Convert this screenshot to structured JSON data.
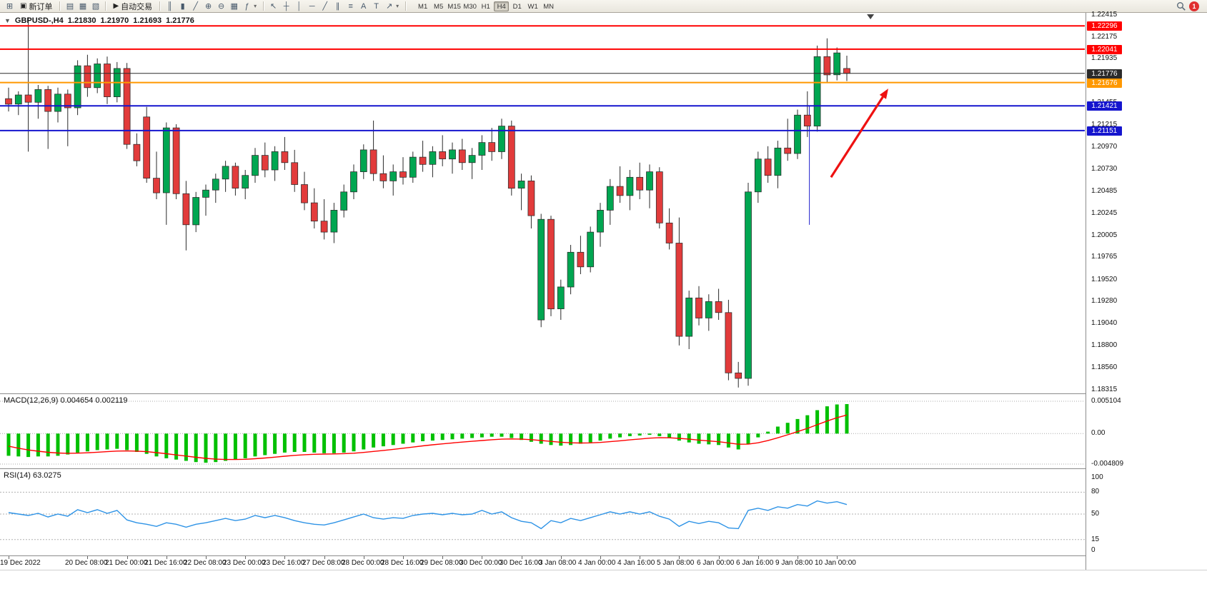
{
  "toolbar": {
    "new_order": "新订单",
    "autotrading": "自动交易",
    "timeframes": [
      "M1",
      "M5",
      "M15",
      "M30",
      "H1",
      "H4",
      "D1",
      "W1",
      "MN"
    ],
    "active_timeframe": "H4",
    "notification_badge": "1"
  },
  "icons": {
    "new_chart": "⊞",
    "new_order": "▣",
    "profiles": "▤",
    "market_watch": "▦",
    "navigator": "▧",
    "autotrading": "▶",
    "bar_chart": "║",
    "candle_chart": "▮",
    "line_chart": "╱",
    "zoom_in": "⊕",
    "zoom_out": "⊖",
    "tile_windows": "▦",
    "indicators": "ƒ",
    "dropdown": "▾",
    "cursor": "↖",
    "crosshair": "┼",
    "vertical_line": "│",
    "horizontal_line": "─",
    "trendline": "╱",
    "channel": "∥",
    "fibonacci": "≡",
    "text": "A",
    "text_label": "T",
    "arrow_object": "↗",
    "one_click": "▼"
  },
  "chart_header": {
    "symbol": "GBPUSD-,H4",
    "open": "1.21830",
    "high": "1.21970",
    "low": "1.21693",
    "close": "1.21776"
  },
  "macd_panel": {
    "label": "MACD(12,26,9) 0.004654 0.002119",
    "axis_labels": [
      "0.005104",
      "0.00",
      "-0.004809"
    ]
  },
  "rsi_panel": {
    "label": "RSI(14) 63.0275",
    "axis_labels": [
      "100",
      "80",
      "50",
      "15",
      "0"
    ]
  },
  "price_axis": {
    "ticks": [
      "1.22415",
      "1.22175",
      "1.21935",
      "1.21455",
      "1.21215",
      "1.20970",
      "1.20730",
      "1.20485",
      "1.20245",
      "1.20005",
      "1.19765",
      "1.19520",
      "1.19280",
      "1.19040",
      "1.18800",
      "1.18560",
      "1.18315"
    ]
  },
  "chart_data": {
    "type": "candlestick",
    "symbol": "GBPUSD",
    "period": "H4",
    "title": "GBPUSD-,H4",
    "ohlc_current": [
      1.2183,
      1.2197,
      1.21693,
      1.21776
    ],
    "y_range": [
      1.18315,
      1.22415
    ],
    "shift_marker_index": 87.4,
    "colors": {
      "bull": "#00a651",
      "bear": "#e23b3b",
      "outline": "#2a2a2a"
    },
    "candles": [
      [
        1.215,
        1.2162,
        1.2136,
        1.2144
      ],
      [
        1.2144,
        1.2158,
        1.2132,
        1.2154
      ],
      [
        1.2154,
        1.2239,
        1.2092,
        1.2146
      ],
      [
        1.2146,
        1.2165,
        1.2128,
        1.216
      ],
      [
        1.216,
        1.2164,
        1.2095,
        1.2136
      ],
      [
        1.2136,
        1.2162,
        1.2124,
        1.2155
      ],
      [
        1.2155,
        1.216,
        1.2098,
        1.214
      ],
      [
        1.214,
        1.2192,
        1.2132,
        1.2186
      ],
      [
        1.2186,
        1.2198,
        1.2152,
        1.2162
      ],
      [
        1.2162,
        1.2194,
        1.2156,
        1.2188
      ],
      [
        1.2188,
        1.2196,
        1.2144,
        1.2152
      ],
      [
        1.2152,
        1.219,
        1.2146,
        1.2183
      ],
      [
        1.2183,
        1.2189,
        1.2095,
        1.21
      ],
      [
        1.21,
        1.2112,
        1.2076,
        1.2082
      ],
      [
        1.213,
        1.2141,
        1.2058,
        1.2063
      ],
      [
        1.2063,
        1.2092,
        1.204,
        1.2047
      ],
      [
        1.2047,
        1.2124,
        1.2012,
        1.2118
      ],
      [
        1.2118,
        1.2122,
        1.204,
        1.2046
      ],
      [
        1.2046,
        1.206,
        1.1984,
        1.2012
      ],
      [
        1.2012,
        1.2048,
        1.2004,
        1.2042
      ],
      [
        1.2042,
        1.2056,
        1.2022,
        1.205
      ],
      [
        1.205,
        1.2068,
        1.2036,
        1.2062
      ],
      [
        1.2062,
        1.2082,
        1.2048,
        1.2076
      ],
      [
        1.2076,
        1.208,
        1.2044,
        1.2052
      ],
      [
        1.2052,
        1.2072,
        1.204,
        1.2066
      ],
      [
        1.2066,
        1.2096,
        1.2058,
        1.2088
      ],
      [
        1.2088,
        1.2102,
        1.2064,
        1.2072
      ],
      [
        1.2072,
        1.2098,
        1.206,
        1.2092
      ],
      [
        1.2092,
        1.2108,
        1.2072,
        1.208
      ],
      [
        1.208,
        1.2094,
        1.2048,
        1.2056
      ],
      [
        1.2056,
        1.207,
        1.2028,
        1.2036
      ],
      [
        1.2036,
        1.2052,
        1.2008,
        1.2016
      ],
      [
        1.2016,
        1.204,
        1.1996,
        1.2004
      ],
      [
        1.2004,
        1.2036,
        1.1992,
        1.2028
      ],
      [
        1.2028,
        1.2056,
        1.202,
        1.2048
      ],
      [
        1.2048,
        1.2078,
        1.204,
        1.207
      ],
      [
        1.207,
        1.21,
        1.2062,
        1.2094
      ],
      [
        1.2094,
        1.2126,
        1.206,
        1.2068
      ],
      [
        1.2068,
        1.2088,
        1.2052,
        1.206
      ],
      [
        1.206,
        1.2078,
        1.2044,
        1.207
      ],
      [
        1.207,
        1.2086,
        1.2056,
        1.2064
      ],
      [
        1.2064,
        1.2092,
        1.2058,
        1.2086
      ],
      [
        1.2086,
        1.2104,
        1.207,
        1.2078
      ],
      [
        1.2078,
        1.2098,
        1.2064,
        1.2092
      ],
      [
        1.2092,
        1.211,
        1.2076,
        1.2084
      ],
      [
        1.2084,
        1.2102,
        1.2068,
        1.2094
      ],
      [
        1.2094,
        1.2106,
        1.2072,
        1.208
      ],
      [
        1.208,
        1.2096,
        1.2062,
        1.2088
      ],
      [
        1.2088,
        1.211,
        1.2072,
        1.2102
      ],
      [
        1.2102,
        1.2118,
        1.2082,
        1.2092
      ],
      [
        1.2092,
        1.2128,
        1.2084,
        1.212
      ],
      [
        1.212,
        1.2126,
        1.2044,
        1.2052
      ],
      [
        1.2052,
        1.2068,
        1.2028,
        1.206
      ],
      [
        1.206,
        1.2066,
        1.2008,
        1.2022
      ],
      [
        1.1908,
        1.2024,
        1.19,
        1.2018
      ],
      [
        1.2018,
        1.2022,
        1.1912,
        1.192
      ],
      [
        1.192,
        1.1952,
        1.1908,
        1.1944
      ],
      [
        1.1944,
        1.199,
        1.1936,
        1.1982
      ],
      [
        1.1982,
        1.2,
        1.1958,
        1.1966
      ],
      [
        1.1966,
        1.201,
        1.196,
        1.2004
      ],
      [
        1.2004,
        1.2036,
        1.1988,
        1.2028
      ],
      [
        1.2028,
        1.2062,
        1.2012,
        1.2054
      ],
      [
        1.2054,
        1.2076,
        1.2036,
        1.2044
      ],
      [
        1.2044,
        1.2072,
        1.2028,
        1.2064
      ],
      [
        1.2064,
        1.208,
        1.204,
        1.205
      ],
      [
        1.205,
        1.2078,
        1.203,
        1.207
      ],
      [
        1.207,
        1.2075,
        1.2008,
        1.2014
      ],
      [
        1.2014,
        1.203,
        1.1985,
        1.1992
      ],
      [
        1.1992,
        1.202,
        1.188,
        1.189
      ],
      [
        1.189,
        1.194,
        1.1876,
        1.1932
      ],
      [
        1.1932,
        1.1945,
        1.1902,
        1.191
      ],
      [
        1.191,
        1.1936,
        1.1896,
        1.1928
      ],
      [
        1.1928,
        1.1942,
        1.1908,
        1.1916
      ],
      [
        1.1916,
        1.193,
        1.1842,
        1.185
      ],
      [
        1.185,
        1.1862,
        1.1834,
        1.1844
      ],
      [
        1.1844,
        1.2058,
        1.1836,
        1.2048
      ],
      [
        1.2048,
        1.2092,
        1.2036,
        1.2084
      ],
      [
        1.2084,
        1.2098,
        1.2058,
        1.2066
      ],
      [
        1.2066,
        1.2104,
        1.2052,
        1.2096
      ],
      [
        1.2096,
        1.2128,
        1.2082,
        1.209
      ],
      [
        1.209,
        1.2138,
        1.2084,
        1.2132
      ],
      [
        1.2132,
        1.2158,
        1.2108,
        1.212
      ],
      [
        1.212,
        1.2208,
        1.2114,
        1.2196
      ],
      [
        1.2196,
        1.2216,
        1.2168,
        1.2176
      ],
      [
        1.2176,
        1.2206,
        1.217,
        1.22
      ],
      [
        1.2183,
        1.2197,
        1.21693,
        1.21776
      ]
    ],
    "time_labels": [
      {
        "i": 0,
        "t": "19 Dec 2022"
      },
      {
        "i": 8,
        "t": "20 Dec 08:00"
      },
      {
        "i": 12,
        "t": "21 Dec 00:00"
      },
      {
        "i": 16,
        "t": "21 Dec 16:00"
      },
      {
        "i": 20,
        "t": "22 Dec 08:00"
      },
      {
        "i": 24,
        "t": "23 Dec 00:00"
      },
      {
        "i": 28,
        "t": "23 Dec 16:00"
      },
      {
        "i": 32,
        "t": "27 Dec 08:00"
      },
      {
        "i": 36,
        "t": "28 Dec 00:00"
      },
      {
        "i": 40,
        "t": "28 Dec 16:00"
      },
      {
        "i": 44,
        "t": "29 Dec 08:00"
      },
      {
        "i": 48,
        "t": "30 Dec 00:00"
      },
      {
        "i": 52,
        "t": "30 Dec 16:00"
      },
      {
        "i": 56,
        "t": "3 Jan 08:00"
      },
      {
        "i": 60,
        "t": "4 Jan 00:00"
      },
      {
        "i": 64,
        "t": "4 Jan 16:00"
      },
      {
        "i": 68,
        "t": "5 Jan 08:00"
      },
      {
        "i": 72,
        "t": "6 Jan 00:00"
      },
      {
        "i": 76,
        "t": "6 Jan 16:00"
      },
      {
        "i": 80,
        "t": "9 Jan 08:00"
      },
      {
        "i": 84,
        "t": "10 Jan 00:00"
      }
    ],
    "hlines": [
      {
        "price": 1.22296,
        "label": "1.22296",
        "color": "#ff0000",
        "width": 2,
        "role": "resistance"
      },
      {
        "price": 1.22041,
        "label": "1.22041",
        "color": "#ff0000",
        "width": 2,
        "role": "resistance"
      },
      {
        "price": 1.21776,
        "label": "1.21776",
        "color": "#2b2b2b",
        "width": 1,
        "role": "current-price"
      },
      {
        "price": 1.21676,
        "label": "1.21676",
        "color": "#ff9800",
        "width": 2,
        "role": "level"
      },
      {
        "price": 1.21421,
        "label": "1.21421",
        "color": "#1515ce",
        "width": 2,
        "role": "support"
      },
      {
        "price": 1.21151,
        "label": "1.21151",
        "color": "#1515ce",
        "width": 2,
        "role": "support"
      }
    ],
    "vline_segment": {
      "index": 81.2,
      "price_from": 1.2142,
      "price_to": 1.2012,
      "color": "#2222cc"
    },
    "arrow": {
      "from": {
        "index": 83.4,
        "price": 1.2064
      },
      "to": {
        "index": 89.2,
        "price": 1.2161
      },
      "color": "#ee1111"
    },
    "macd": {
      "name": "MACD(12,26,9)",
      "value_main": 0.004654,
      "value_signal": 0.002119,
      "y_range": [
        -0.004809,
        0.005104
      ],
      "hist_color": "#00c000",
      "signal_color": "#ff0000",
      "signal_period": 9,
      "signal_start": -0.0016,
      "values": [
        -0.0035,
        -0.0036,
        -0.0037,
        -0.0036,
        -0.0036,
        -0.0035,
        -0.0033,
        -0.003,
        -0.0028,
        -0.0026,
        -0.0025,
        -0.0024,
        -0.0026,
        -0.0029,
        -0.0032,
        -0.0036,
        -0.0039,
        -0.0041,
        -0.0043,
        -0.0045,
        -0.0046,
        -0.0045,
        -0.0043,
        -0.0041,
        -0.0039,
        -0.0036,
        -0.0034,
        -0.0032,
        -0.003,
        -0.0029,
        -0.0029,
        -0.003,
        -0.0031,
        -0.0031,
        -0.003,
        -0.0028,
        -0.0025,
        -0.0022,
        -0.002,
        -0.0018,
        -0.0016,
        -0.0014,
        -0.0012,
        -0.0011,
        -0.001,
        -0.0009,
        -0.0008,
        -0.0007,
        -0.0006,
        -0.0005,
        -0.0005,
        -0.0007,
        -0.001,
        -0.0013,
        -0.0016,
        -0.0018,
        -0.0019,
        -0.0018,
        -0.0016,
        -0.0014,
        -0.0011,
        -0.0008,
        -0.0006,
        -0.0004,
        -0.0003,
        -0.0002,
        -0.0004,
        -0.0007,
        -0.0011,
        -0.0014,
        -0.0016,
        -0.0017,
        -0.0018,
        -0.0022,
        -0.0025,
        -0.0016,
        -0.0006,
        0.0003,
        0.0011,
        0.0017,
        0.0023,
        0.0029,
        0.0037,
        0.0043,
        0.0046,
        0.004654
      ]
    },
    "rsi": {
      "name": "RSI(14)",
      "value": 63.0275,
      "y_range": [
        0,
        100
      ],
      "levels": [
        80,
        50,
        15
      ],
      "color": "#2e93e6",
      "values": [
        52,
        50,
        48,
        51,
        46,
        50,
        47,
        56,
        52,
        56,
        51,
        55,
        42,
        38,
        36,
        33,
        38,
        36,
        32,
        36,
        38,
        41,
        44,
        41,
        43,
        48,
        45,
        48,
        45,
        41,
        38,
        36,
        35,
        38,
        42,
        46,
        50,
        45,
        43,
        45,
        44,
        48,
        50,
        51,
        49,
        51,
        49,
        50,
        55,
        50,
        53,
        45,
        40,
        38,
        30,
        41,
        38,
        44,
        41,
        45,
        49,
        53,
        50,
        53,
        50,
        53,
        47,
        43,
        33,
        40,
        37,
        40,
        38,
        31,
        30,
        55,
        58,
        55,
        60,
        58,
        63,
        61,
        68,
        65,
        67,
        63.0275
      ]
    }
  }
}
